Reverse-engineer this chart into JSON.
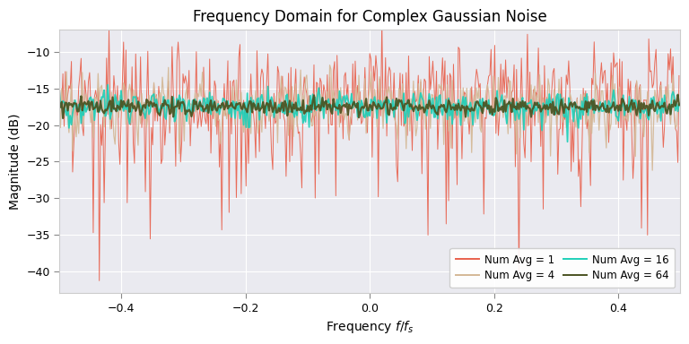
{
  "title": "Frequency Domain for Complex Gaussian Noise",
  "xlabel": "Frequency $f/f_s$",
  "ylabel": "Magnitude (dB)",
  "xlim": [
    -0.5,
    0.5
  ],
  "ylim": [
    -43,
    -7
  ],
  "yticks": [
    -10,
    -15,
    -20,
    -25,
    -30,
    -35,
    -40
  ],
  "xticks": [
    -0.4,
    -0.2,
    0.0,
    0.2,
    0.4
  ],
  "colors": {
    "avg1": "#e8604c",
    "avg4": "#d4b896",
    "avg16": "#1ecfb8",
    "avg64": "#4a5220"
  },
  "linewidths": {
    "avg1": 0.7,
    "avg4": 0.9,
    "avg16": 1.3,
    "avg64": 1.6
  },
  "legend": [
    {
      "label": "Num Avg = 1",
      "color": "#e8604c",
      "lw": 1.4
    },
    {
      "label": "Num Avg = 4",
      "color": "#d4b896",
      "lw": 1.4
    },
    {
      "label": "Num Avg = 16",
      "color": "#1ecfb8",
      "lw": 1.4
    },
    {
      "label": "Num Avg = 64",
      "color": "#4a5220",
      "lw": 1.4
    }
  ],
  "N": 512,
  "seeds": [
    10,
    20,
    30,
    40
  ],
  "num_avgs": [
    1,
    4,
    16,
    64
  ],
  "noise_mean_db": -17.5,
  "bg_figure": "#ffffff",
  "bg_axes": "#eaeaf0"
}
